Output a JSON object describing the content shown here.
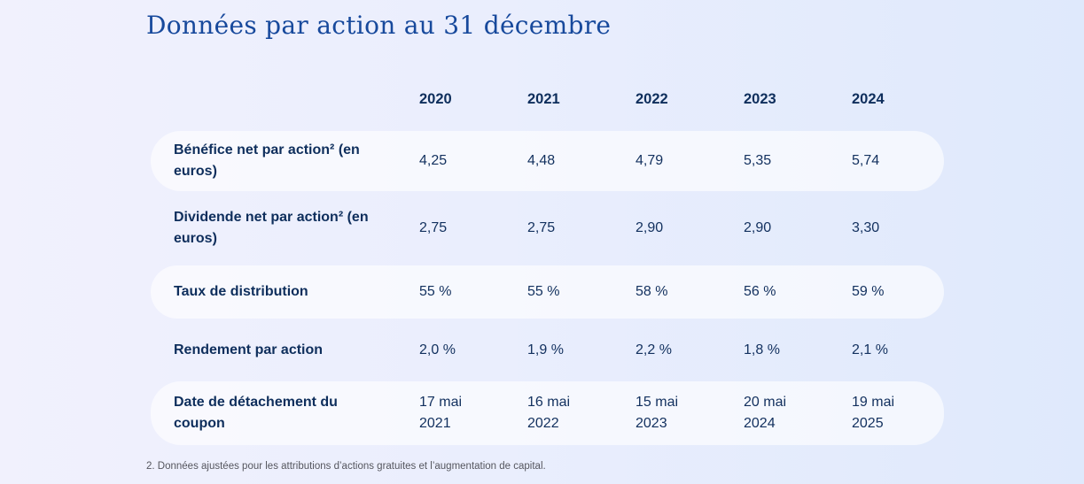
{
  "title": "Données par action au 31 décembre",
  "table": {
    "years": [
      "2020",
      "2021",
      "2022",
      "2023",
      "2024"
    ],
    "rows": [
      {
        "label": "Bénéfice net par action² (en euros)",
        "values": [
          "4,25",
          "4,48",
          "4,79",
          "5,35",
          "5,74"
        ],
        "highlighted": true
      },
      {
        "label": "Dividende net par action² (en euros)",
        "values": [
          "2,75",
          "2,75",
          "2,90",
          "2,90",
          "3,30"
        ],
        "highlighted": false
      },
      {
        "label": "Taux de distribution",
        "values": [
          "55 %",
          "55 %",
          "58 %",
          "56 %",
          "59 %"
        ],
        "highlighted": true
      },
      {
        "label": "Rendement par action",
        "values": [
          "2,0 %",
          "1,9 %",
          "2,2 %",
          "1,8 %",
          "2,1 %"
        ],
        "highlighted": false
      },
      {
        "label": "Date de détachement du coupon",
        "values": [
          "17 mai 2021",
          "16 mai 2022",
          "15 mai 2023",
          "20 mai 2024",
          "19 mai 2025"
        ],
        "highlighted": true
      }
    ]
  },
  "footnote": "2. Données ajustées pour les attributions d’actions gratuites et l’augmentation de capital.",
  "colors": {
    "title_blue": "#17499c",
    "text_navy": "#0e2e5c",
    "row_highlight": "rgba(255,255,255,0.62)",
    "background_left": "#f1f1fd",
    "background_right": "#dfe9fc"
  }
}
